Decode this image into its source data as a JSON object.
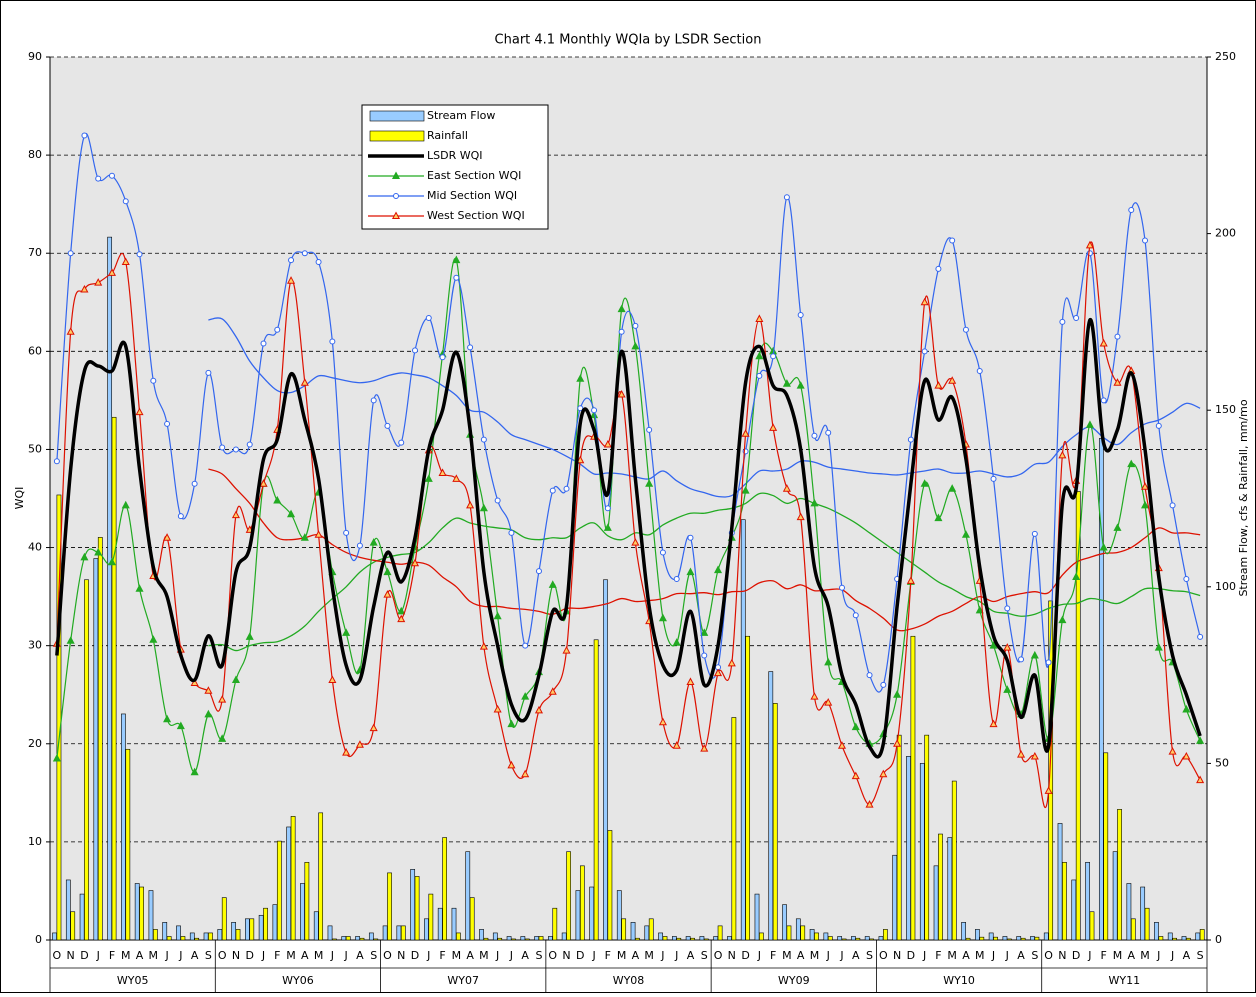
{
  "chart_data": {
    "type": "combo",
    "title": "Chart 4.1 Monthly WQIa by LSDR Section",
    "y_label": "WQI",
    "y2_label": "Stream Flow, cfs & Rainfall, mm/mo",
    "ylim": [
      0,
      90
    ],
    "yticks": [
      0,
      10,
      20,
      30,
      40,
      50,
      60,
      70,
      80,
      90
    ],
    "y2lim": [
      0,
      250
    ],
    "y2ticks": [
      0,
      50,
      100,
      150,
      200,
      250
    ],
    "grid": true,
    "categories": [
      "O",
      "N",
      "D",
      "J",
      "F",
      "M",
      "A",
      "M",
      "J",
      "J",
      "A",
      "S",
      "O",
      "N",
      "D",
      "J",
      "F",
      "M",
      "A",
      "M",
      "J",
      "J",
      "A",
      "S",
      "O",
      "N",
      "D",
      "J",
      "F",
      "M",
      "A",
      "M",
      "J",
      "J",
      "A",
      "S",
      "O",
      "N",
      "D",
      "J",
      "F",
      "M",
      "A",
      "M",
      "J",
      "J",
      "A",
      "S",
      "O",
      "N",
      "D",
      "J",
      "F",
      "M",
      "A",
      "M",
      "J",
      "J",
      "A",
      "S",
      "O",
      "N",
      "D",
      "J",
      "F",
      "M",
      "A",
      "M",
      "J",
      "J",
      "A",
      "S",
      "O",
      "N",
      "D",
      "J",
      "F",
      "M",
      "A",
      "M",
      "J",
      "J",
      "A",
      "S"
    ],
    "groups": [
      "WY05",
      "WY06",
      "WY07",
      "WY08",
      "WY09",
      "WY10",
      "WY11"
    ],
    "series": [
      {
        "name": "Stream Flow",
        "type": "bar",
        "axis": "y2",
        "color": "#99ccff",
        "values": [
          2,
          17,
          13,
          108,
          199,
          64,
          16,
          14,
          5,
          4,
          2,
          2,
          3,
          5,
          6,
          7,
          10,
          32,
          16,
          8,
          4,
          1,
          1,
          2,
          4,
          4,
          20,
          6,
          9,
          9,
          25,
          3,
          2,
          1,
          1,
          1,
          1,
          2,
          14,
          15,
          102,
          14,
          5,
          4,
          2,
          1,
          1,
          1,
          1,
          1,
          119,
          13,
          76,
          10,
          6,
          3,
          2,
          1,
          1,
          1,
          1,
          24,
          52,
          50,
          21,
          29,
          5,
          3,
          2,
          1,
          1,
          1,
          2,
          33,
          17,
          22,
          142,
          25,
          16,
          15,
          5,
          2,
          1,
          2
        ]
      },
      {
        "name": "Rainfall",
        "type": "bar",
        "axis": "y2",
        "color": "#ffff00",
        "values": [
          126,
          8,
          102,
          114,
          148,
          54,
          15,
          3,
          1,
          1,
          0.5,
          2,
          12,
          3,
          6,
          9,
          28,
          35,
          22,
          36,
          0.3,
          1,
          0.5,
          0.3,
          19,
          4,
          18,
          13,
          29,
          2,
          12,
          0.5,
          0.5,
          0.3,
          0.3,
          1,
          9,
          25,
          21,
          85,
          31,
          6,
          0.5,
          6,
          1,
          0.5,
          0.5,
          0.3,
          4,
          63,
          86,
          2,
          67,
          4,
          4,
          2,
          1,
          0.3,
          0.5,
          0.3,
          3,
          58,
          86,
          58,
          30,
          45,
          0.5,
          0.8,
          0.8,
          0.3,
          0.5,
          0.8,
          96,
          22,
          127,
          8,
          53,
          37,
          6,
          9,
          1,
          0.5,
          0.5,
          3
        ]
      },
      {
        "name": "LSDR WQI",
        "type": "line",
        "color": "#000000",
        "width": 3.5,
        "values": [
          29,
          48,
          58,
          58.5,
          58,
          60.5,
          48,
          38,
          35,
          29,
          26.5,
          31,
          28,
          37.5,
          40,
          49,
          51,
          57.7,
          53,
          47,
          36,
          28,
          26.5,
          34,
          39.5,
          36.5,
          41,
          50,
          54,
          59.9,
          52,
          37.5,
          30,
          24,
          22.5,
          27,
          33.5,
          34,
          52.7,
          52,
          45.5,
          60,
          47,
          34,
          28,
          27.5,
          33.5,
          26,
          30,
          42,
          56.8,
          60.5,
          56.5,
          55.5,
          50,
          38,
          34,
          27,
          24,
          19.7,
          20,
          34,
          46.5,
          57,
          53,
          55.3,
          49,
          38,
          31,
          28.5,
          22.7,
          27,
          19.8,
          44.5,
          46,
          63.2,
          50.6,
          52,
          57.8,
          50,
          37,
          29,
          25,
          20.8
        ]
      },
      {
        "name": "East Section WQI",
        "type": "line",
        "color": "#22aa22",
        "width": 1.2,
        "marker": "triangle",
        "values": [
          18.5,
          30.5,
          39,
          39.5,
          38.5,
          44.3,
          35.8,
          30.6,
          22.5,
          21.8,
          17.1,
          23,
          20.5,
          26.5,
          30.9,
          46.5,
          44.8,
          43.4,
          41,
          45.6,
          37.5,
          31.3,
          27.5,
          40.5,
          37.5,
          33.5,
          40,
          47,
          59.7,
          69.3,
          51.5,
          44,
          33,
          22,
          24.8,
          27.3,
          36.2,
          33.5,
          57.2,
          53.5,
          42,
          64.3,
          60.5,
          46.5,
          32.8,
          30.3,
          37.5,
          31.3,
          37.7,
          41,
          45.8,
          59.5,
          60,
          56.7,
          56.5,
          44.5,
          28.3,
          26.3,
          21.7,
          20,
          21,
          25,
          36.5,
          46.5,
          43,
          46,
          41.3,
          33.6,
          30,
          25.5,
          23,
          29,
          20.5,
          32.6,
          37,
          52.5,
          40,
          42,
          48.5,
          44.3,
          29.8,
          28.3,
          23.5,
          20.3
        ]
      },
      {
        "name": "Mid Section WQI",
        "type": "line",
        "color": "#3366ee",
        "width": 1.2,
        "marker": "circle",
        "values": [
          48.8,
          70,
          82,
          77.6,
          77.9,
          75.3,
          69.9,
          57,
          52.6,
          43.2,
          46.5,
          57.8,
          50.2,
          50,
          50.5,
          60.8,
          62.2,
          69.3,
          70,
          69.1,
          61,
          41.5,
          40.2,
          55,
          52.4,
          50.7,
          60.1,
          63.4,
          59.4,
          67.5,
          60.4,
          51,
          44.8,
          41.5,
          30,
          37.6,
          45.8,
          46,
          54.2,
          54,
          44,
          62,
          62.6,
          52,
          39.5,
          36.8,
          41,
          29,
          27.8,
          41.5,
          49.8,
          57.5,
          59.5,
          75.7,
          63.7,
          51.4,
          51.7,
          35.9,
          33.1,
          27,
          26,
          36.8,
          51,
          60,
          68.4,
          71.3,
          62.2,
          58,
          47,
          33.8,
          28.6,
          41.4,
          28.3,
          63,
          63.4,
          70,
          55,
          61.5,
          74.4,
          71.3,
          52.4,
          44.3,
          36.8,
          30.9
        ]
      },
      {
        "name": "West Section WQI",
        "type": "line",
        "color": "#dd1100",
        "width": 1.2,
        "marker": "triangle",
        "values": [
          30.2,
          62,
          66.3,
          67,
          68,
          69.1,
          53.8,
          37.1,
          41,
          29.6,
          26.2,
          25.4,
          24.5,
          43.3,
          41.8,
          46.5,
          52,
          67.2,
          56.8,
          41.3,
          26.5,
          19.1,
          19.9,
          21.6,
          35.2,
          32.7,
          38.4,
          49.9,
          47.6,
          47,
          44.3,
          29.9,
          23.5,
          17.8,
          16.9,
          23.4,
          25.3,
          29.5,
          48.9,
          51.3,
          50.5,
          55.6,
          40.5,
          32.5,
          22.2,
          19.8,
          26.3,
          19.5,
          27.2,
          28.2,
          51.6,
          63.3,
          52.2,
          46,
          43.1,
          24.8,
          24.2,
          19.8,
          16.7,
          13.8,
          16.9,
          20,
          36.6,
          65,
          56.5,
          57,
          50.5,
          36.6,
          22,
          29.8,
          18.9,
          18.7,
          15.2,
          49.4,
          46.8,
          70.8,
          60.8,
          56.8,
          58,
          46.2,
          37.9,
          19.2,
          18.7,
          16.3
        ]
      }
    ],
    "trend_lines": [
      {
        "color": "#3366ee",
        "values": [
          null,
          null,
          null,
          null,
          null,
          null,
          null,
          null,
          null,
          null,
          null,
          63.2,
          63.3,
          61.5,
          59,
          57.3,
          56,
          55.8,
          56.5,
          57.5,
          57.3,
          57,
          56.8,
          57,
          57.5,
          57.8,
          57.6,
          57.3,
          56.5,
          55.5,
          54,
          53.8,
          52.8,
          51.5,
          51,
          50.5,
          50,
          49.3,
          48.5,
          47.5,
          47.6,
          47.5,
          47.2,
          47,
          47.8,
          46.8,
          46,
          45.6,
          45.2,
          45.3,
          46.5,
          47.8,
          47.8,
          48,
          48.8,
          48.7,
          48.2,
          48,
          47.8,
          47.6,
          47.5,
          47.4,
          47.6,
          47.8,
          48,
          47.6,
          47.6,
          47.8,
          47.5,
          47.2,
          47.5,
          48.5,
          48.7,
          50.3,
          51.5,
          52.3,
          51.2,
          50.5,
          51.7,
          52.6,
          53,
          53.8,
          54.7,
          54.2
        ]
      },
      {
        "color": "#22aa22",
        "values": [
          null,
          null,
          null,
          null,
          null,
          null,
          null,
          null,
          null,
          null,
          null,
          30,
          30.1,
          29.5,
          30,
          30.3,
          30.4,
          31,
          32,
          33.5,
          34.8,
          36,
          37.5,
          38.5,
          39,
          39.3,
          39.5,
          40.5,
          42,
          43,
          42.5,
          42.2,
          42,
          41.8,
          41,
          40.8,
          41,
          41,
          42,
          42.5,
          41.2,
          40.8,
          41.5,
          41.3,
          42.3,
          43,
          43.5,
          43.5,
          43.8,
          44,
          44.5,
          45.5,
          45.3,
          44.5,
          45,
          44.5,
          44,
          43.3,
          42.5,
          41.5,
          40.5,
          39.5,
          38.5,
          37.5,
          36.5,
          35.8,
          35,
          34.5,
          33.5,
          33.3,
          33,
          33.2,
          33.8,
          34.2,
          34.3,
          34.8,
          34.6,
          34.3,
          35,
          35.8,
          35.8,
          35.6,
          35.5,
          35.1
        ]
      },
      {
        "color": "#dd1100",
        "values": [
          null,
          null,
          null,
          null,
          null,
          null,
          null,
          null,
          null,
          null,
          null,
          48,
          47.5,
          46,
          44.5,
          42.5,
          41,
          40.8,
          41,
          41.3,
          40.3,
          39.5,
          39,
          38.7,
          38.5,
          38.3,
          38.5,
          38.2,
          37,
          36,
          34.5,
          34,
          34,
          33.8,
          33.7,
          33.5,
          33.2,
          33.8,
          33.8,
          34,
          34.3,
          34.8,
          34.5,
          34.6,
          34.8,
          35.3,
          35.3,
          35.4,
          35.2,
          35.5,
          35.6,
          36.4,
          36.6,
          35.8,
          36.2,
          35.6,
          35.7,
          35.7,
          34.6,
          33.8,
          32.8,
          31.6,
          31.7,
          32.2,
          33,
          33.5,
          34.3,
          35,
          34.5,
          35,
          35.3,
          35.5,
          35.4,
          37.2,
          38.5,
          39,
          39.4,
          39.5,
          40,
          41,
          42,
          41.5,
          41.5,
          41.3
        ]
      }
    ]
  }
}
